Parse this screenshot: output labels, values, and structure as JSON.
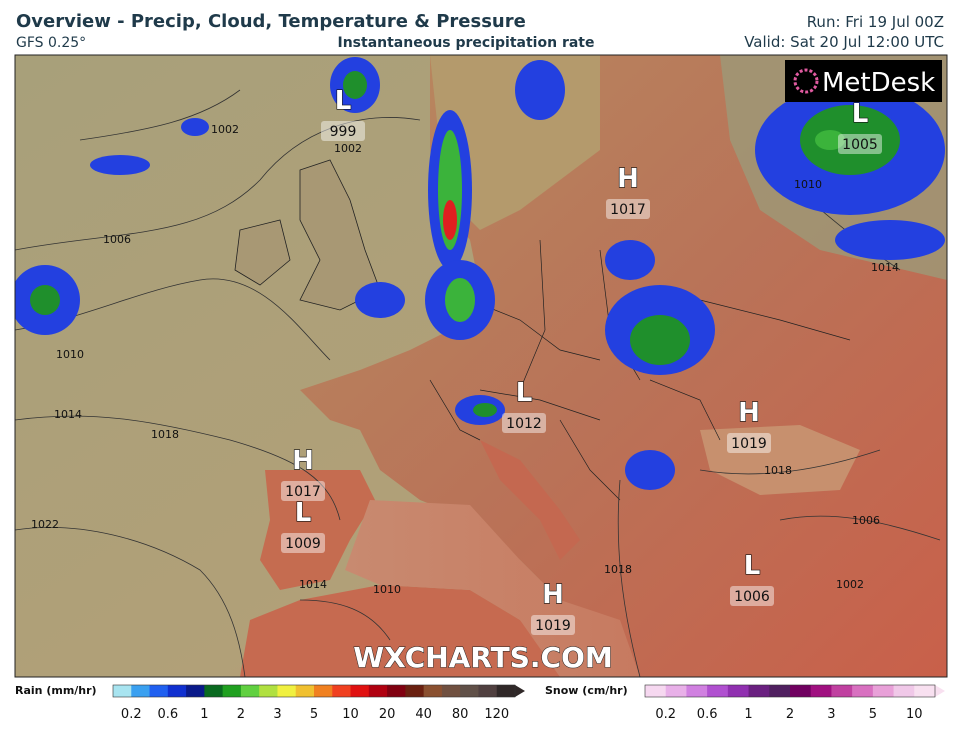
{
  "header": {
    "title": "Overview - Precip, Cloud, Temperature & Pressure",
    "model": "GFS 0.25°",
    "subtitle": "Instantaneous precipitation rate",
    "run": "Run: Fri 19 Jul 00Z",
    "valid": "Valid: Sat 20 Jul 12:00 UTC",
    "logo": "MetDesk"
  },
  "watermark": "WXCHARTS.COM",
  "pressure_centers": [
    {
      "type": "L",
      "value": 999
    },
    {
      "type": "L",
      "value": 1005
    },
    {
      "type": "H",
      "value": 1017
    },
    {
      "type": "L",
      "value": 1012
    },
    {
      "type": "H",
      "value": 1019
    },
    {
      "type": "H",
      "value": 1017
    },
    {
      "type": "L",
      "value": 1009
    },
    {
      "type": "L",
      "value": 1006
    },
    {
      "type": "H",
      "value": 1019
    }
  ],
  "isobar_labels": [
    1002,
    1002,
    1006,
    1010,
    1014,
    1018,
    1022,
    1014,
    1010,
    1018,
    1018,
    1006,
    1002,
    1010,
    1014
  ],
  "legends": {
    "rain": {
      "title": "Rain (mm/hr)",
      "ticks": [
        0.2,
        0.6,
        1,
        2,
        3,
        5,
        10,
        20,
        40,
        80,
        120
      ],
      "colors": [
        "#a8e4f0",
        "#3aa0f0",
        "#2060f0",
        "#1030d0",
        "#0a1a8a",
        "#0a6a20",
        "#20a020",
        "#60d040",
        "#b0e040",
        "#f0f040",
        "#f0c030",
        "#f08020",
        "#f04020",
        "#e01010",
        "#b00010",
        "#800010",
        "#6a2010",
        "#8a5030",
        "#705040",
        "#605048",
        "#504040",
        "#302828"
      ]
    },
    "snow": {
      "title": "Snow (cm/hr)",
      "ticks": [
        0.2,
        0.6,
        1,
        2,
        3,
        5,
        10
      ],
      "colors": [
        "#f6d8f0",
        "#e8b0e8",
        "#d080e0",
        "#b050d0",
        "#9030b0",
        "#6a2080",
        "#502060",
        "#700060",
        "#a01080",
        "#c040a0",
        "#d870c0",
        "#e8a0d8",
        "#f0c8e8",
        "#f8e0f0"
      ]
    }
  }
}
